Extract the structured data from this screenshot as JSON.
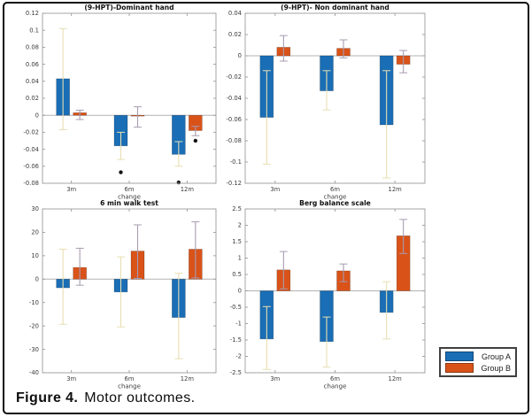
{
  "figure": {
    "caption_label": "Figure 4.",
    "caption_text": "Motor outcomes."
  },
  "legend": {
    "position": "outside-bottom-right",
    "items": [
      {
        "label": "Group A",
        "color": "#1a6eb5"
      },
      {
        "label": "Group B",
        "color": "#d95319"
      }
    ]
  },
  "colors": {
    "group_a": "#1a6eb5",
    "group_b": "#d95319",
    "err_a": "#e7dfb2",
    "err_b": "#a79cb1",
    "zero_line": "#b3b3b3",
    "axis": "#9b9b9b",
    "tick_text": "#3c3c3c",
    "outlier": "#141414"
  },
  "chart_data": [
    {
      "id": "hpt-dominant",
      "type": "bar",
      "title": "(9-HPT)-Dominant hand",
      "xlabel": "change",
      "categories": [
        "3m",
        "6m",
        "12m"
      ],
      "ylim": [
        -0.08,
        0.12
      ],
      "grid": false,
      "ytick_vals": [
        0.12,
        0.1,
        0.08,
        0.06,
        0.04,
        0.02,
        0,
        -0.02,
        -0.04,
        -0.06,
        -0.08
      ],
      "ytick_labels": [
        "0.12",
        "0.1",
        "0.08",
        "0.06",
        "0.04",
        "0.02",
        "0",
        "-0.02",
        "-0.04",
        "-0.06",
        "-0.08"
      ],
      "series": [
        {
          "name": "Group A",
          "values": [
            0.043,
            -0.036,
            -0.046
          ],
          "err_lo": [
            -0.017,
            -0.052,
            -0.06
          ],
          "err_hi": [
            0.102,
            -0.02,
            -0.031
          ]
        },
        {
          "name": "Group B",
          "values": [
            0.003,
            -0.001,
            -0.018
          ],
          "err_lo": [
            -0.005,
            -0.014,
            -0.024
          ],
          "err_hi": [
            0.006,
            0.01,
            -0.013
          ]
        }
      ],
      "outliers": [
        {
          "category": "6m",
          "series": "Group A",
          "value": -0.067
        },
        {
          "category": "12m",
          "series": "Group A",
          "value": -0.079
        },
        {
          "category": "12m",
          "series": "Group B",
          "value": -0.03
        }
      ]
    },
    {
      "id": "hpt-nondominant",
      "type": "bar",
      "title": "(9-HPT)- Non dominant hand",
      "xlabel": "change",
      "categories": [
        "3m",
        "6m",
        "12m"
      ],
      "ylim": [
        -0.12,
        0.04
      ],
      "grid": false,
      "ytick_vals": [
        0.04,
        0.02,
        0,
        -0.02,
        -0.04,
        -0.06,
        -0.08,
        -0.1,
        -0.12
      ],
      "ytick_labels": [
        "0.04",
        "0.02",
        "0",
        "-0.02",
        "-0.04",
        "-0.06",
        "-0.08",
        "-0.1",
        "-0.12"
      ],
      "series": [
        {
          "name": "Group A",
          "values": [
            -0.058,
            -0.033,
            -0.065
          ],
          "err_lo": [
            -0.102,
            -0.051,
            -0.115
          ],
          "err_hi": [
            -0.014,
            -0.014,
            -0.014
          ]
        },
        {
          "name": "Group B",
          "values": [
            0.008,
            0.007,
            -0.008
          ],
          "err_lo": [
            -0.005,
            -0.002,
            -0.016
          ],
          "err_hi": [
            0.019,
            0.015,
            0.005
          ]
        }
      ],
      "outliers": []
    },
    {
      "id": "walk-test",
      "type": "bar",
      "title": "6 min walk test",
      "xlabel": "change",
      "categories": [
        "3m",
        "6m",
        "12m"
      ],
      "ylim": [
        -40,
        30
      ],
      "grid": false,
      "ytick_vals": [
        30,
        20,
        10,
        0,
        -10,
        -20,
        -30,
        -40
      ],
      "ytick_labels": [
        "30",
        "20",
        "10",
        "0",
        "-10",
        "-20",
        "-30",
        "-40"
      ],
      "series": [
        {
          "name": "Group A",
          "values": [
            -3.7,
            -5.5,
            -16.4
          ],
          "err_lo": [
            -19.3,
            -20.4,
            -34.0
          ],
          "err_hi": [
            12.8,
            9.5,
            2.5
          ]
        },
        {
          "name": "Group B",
          "values": [
            5.0,
            12.0,
            12.8
          ],
          "err_lo": [
            -2.6,
            0.3,
            0.5
          ],
          "err_hi": [
            13.2,
            23.2,
            24.5
          ]
        }
      ],
      "outliers": []
    },
    {
      "id": "berg-balance",
      "type": "bar",
      "title": "Berg balance scale",
      "xlabel": "change",
      "categories": [
        "3m",
        "6m",
        "12m"
      ],
      "ylim": [
        -2.5,
        2.5
      ],
      "grid": false,
      "ytick_vals": [
        2.5,
        2,
        1.5,
        1,
        0.5,
        0,
        -0.5,
        -1,
        -1.5,
        -2,
        -2.5
      ],
      "ytick_labels": [
        "2.5",
        "2",
        "1.5",
        "1",
        "0.5",
        "0",
        "-0.5",
        "-1",
        "-1.5",
        "-2",
        "-2.5"
      ],
      "series": [
        {
          "name": "Group A",
          "values": [
            -1.47,
            -1.55,
            -0.66
          ],
          "err_lo": [
            -2.4,
            -2.33,
            -1.47
          ],
          "err_hi": [
            -0.48,
            -0.8,
            0.28
          ]
        },
        {
          "name": "Group B",
          "values": [
            0.64,
            0.61,
            1.68
          ],
          "err_lo": [
            0.06,
            0.28,
            1.14
          ],
          "err_hi": [
            1.2,
            0.82,
            2.18
          ]
        }
      ],
      "outliers": []
    }
  ]
}
